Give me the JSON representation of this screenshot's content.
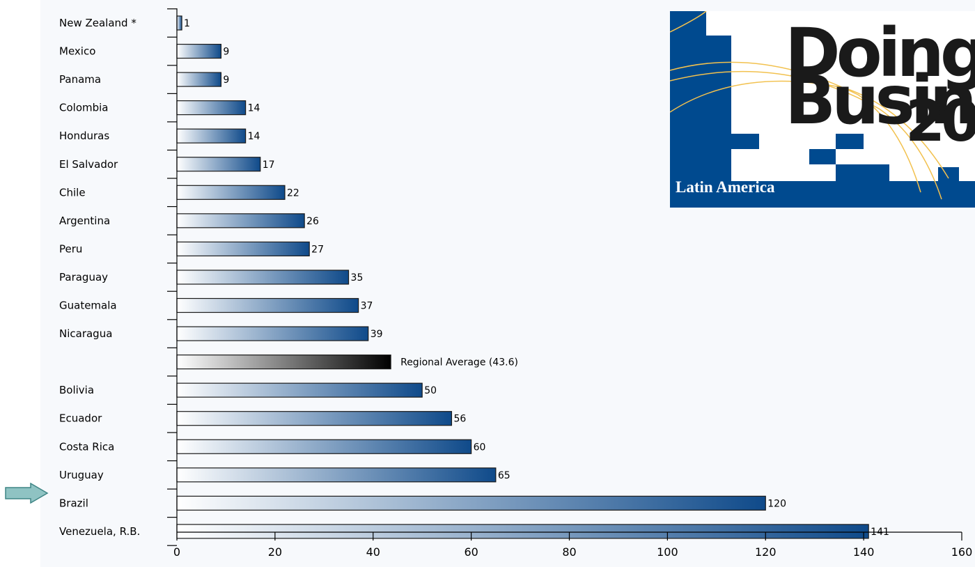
{
  "logo": {
    "line1": "Doing",
    "line2": "Business",
    "year": "20",
    "region": "Latin America"
  },
  "highlight": {
    "target": "Brazil",
    "color": "#8fc3c3"
  },
  "colors": {
    "bar_light": "#ffffff",
    "bar_dark": "#0f4a8a",
    "average_dark": "#000000",
    "logo_blue": "#004a8f",
    "logo_arcs": "#f2c14e"
  },
  "chart_data": {
    "type": "bar",
    "orientation": "horizontal",
    "categories": [
      "New Zealand *",
      "Mexico",
      "Panama",
      "Colombia",
      "Honduras",
      "El Salvador",
      "Chile",
      "Argentina",
      "Peru",
      "Paraguay",
      "Guatemala",
      "Nicaragua",
      "",
      "Bolivia",
      "Ecuador",
      "Costa Rica",
      "Uruguay",
      "Brazil",
      "Venezuela, R.B."
    ],
    "values": [
      1,
      9,
      9,
      14,
      14,
      17,
      22,
      26,
      27,
      35,
      37,
      39,
      43.6,
      50,
      56,
      60,
      65,
      120,
      141
    ],
    "value_labels": [
      "1",
      "9",
      "9",
      "14",
      "14",
      "17",
      "22",
      "26",
      "27",
      "35",
      "37",
      "39",
      "Regional Average (43.6)",
      "50",
      "56",
      "60",
      "65",
      "120",
      "141"
    ],
    "average_index": 12,
    "xlim": [
      0,
      160
    ],
    "xticks": [
      0,
      20,
      40,
      60,
      80,
      100,
      120,
      140,
      160
    ],
    "title": "",
    "xlabel": "",
    "ylabel": "",
    "grid": false
  }
}
